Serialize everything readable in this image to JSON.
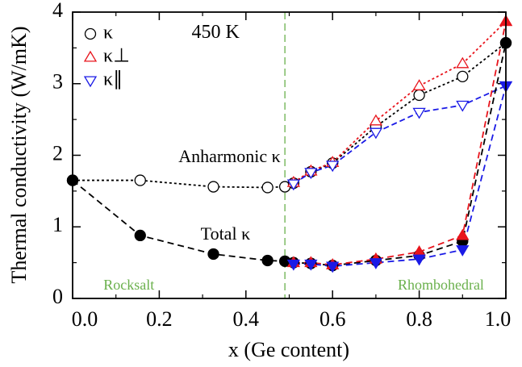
{
  "chart_data": {
    "type": "scatter-line",
    "x_label": "x (Ge content)",
    "y_label": "Thermal conductivity (W/mK)",
    "xlim": [
      0,
      1
    ],
    "ylim": [
      0,
      4
    ],
    "xticks": [
      {
        "value": 0,
        "label": "0.0"
      },
      0.2,
      0.4,
      0.6,
      0.8,
      {
        "value": 1,
        "label": "1.0"
      }
    ],
    "xminorticks": [
      0.1,
      0.3,
      0.5,
      0.7,
      0.9
    ],
    "yticks": [
      0,
      1,
      2,
      3,
      4
    ],
    "yminorticks": [
      0.5,
      1.5,
      2.5,
      3.5
    ],
    "vline": {
      "x": 0.49,
      "color": "#6ab04c"
    },
    "annotations": [
      {
        "text": "450 K",
        "x": 0.33,
        "y": 3.7,
        "color": "#000000",
        "size": 24,
        "anchor": "middle"
      },
      {
        "text": "Anharmonic κ",
        "x": 0.48,
        "y": 1.96,
        "color": "#000000",
        "size": 22,
        "anchor": "end"
      },
      {
        "text": "Total κ",
        "x": 0.41,
        "y": 0.88,
        "color": "#000000",
        "size": 22,
        "anchor": "end"
      },
      {
        "text": "Rocksalt",
        "x": 0.13,
        "y": 0.17,
        "color": "#6ab04c",
        "size": 18,
        "anchor": "middle"
      },
      {
        "text": "Rhombohedral",
        "x": 0.85,
        "y": 0.17,
        "color": "#6ab04c",
        "size": 18,
        "anchor": "middle"
      }
    ],
    "series": [
      {
        "name": "κ",
        "color": "#000000",
        "marker": "circle",
        "filled": false,
        "dash": "3,3",
        "x": [
          0,
          0.156,
          0.325,
          0.45,
          0.49,
          0.51,
          0.55,
          0.6,
          0.7,
          0.8,
          0.9,
          1.0
        ],
        "values": [
          1.65,
          1.65,
          1.56,
          1.55,
          1.56,
          1.61,
          1.77,
          1.89,
          2.4,
          2.84,
          3.1,
          3.57
        ]
      },
      {
        "name": "κ⊥",
        "color": "#e8141c",
        "marker": "up",
        "filled": false,
        "dash": "3,3",
        "x": [
          0.51,
          0.55,
          0.6,
          0.7,
          0.8,
          0.9,
          1.0
        ],
        "values": [
          1.62,
          1.78,
          1.9,
          2.48,
          2.97,
          3.28,
          3.87
        ]
      },
      {
        "name": "κ∥",
        "color": "#1a1ae6",
        "marker": "down",
        "filled": false,
        "dash": "7,4",
        "x": [
          0.51,
          0.55,
          0.6,
          0.7,
          0.8,
          0.9,
          1.0
        ],
        "values": [
          1.6,
          1.76,
          1.86,
          2.32,
          2.6,
          2.7,
          2.97
        ]
      },
      {
        "color": "#000000",
        "marker": "circle",
        "filled": true,
        "dash": "8,5",
        "x": [
          0,
          0.156,
          0.325,
          0.45,
          0.49,
          0.51,
          0.55,
          0.6,
          0.7,
          0.8,
          0.9,
          1.0
        ],
        "values": [
          1.65,
          0.88,
          0.62,
          0.53,
          0.52,
          0.5,
          0.49,
          0.46,
          0.53,
          0.6,
          0.8,
          3.57
        ]
      },
      {
        "color": "#e8141c",
        "marker": "up",
        "filled": true,
        "dash": "8,5",
        "x": [
          0.51,
          0.55,
          0.6,
          0.7,
          0.8,
          0.9,
          1.0
        ],
        "values": [
          0.5,
          0.5,
          0.47,
          0.55,
          0.65,
          0.88,
          3.87
        ]
      },
      {
        "color": "#1a1ae6",
        "marker": "down",
        "filled": true,
        "dash": "8,5",
        "x": [
          0.51,
          0.55,
          0.6,
          0.7,
          0.8,
          0.9,
          1.0
        ],
        "values": [
          0.48,
          0.48,
          0.45,
          0.5,
          0.55,
          0.68,
          2.97
        ]
      }
    ]
  }
}
